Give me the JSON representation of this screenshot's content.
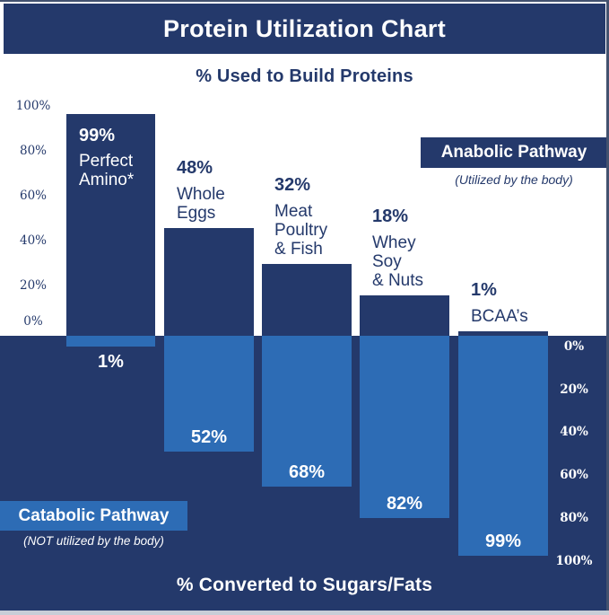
{
  "title": "Protein Utilization Chart",
  "top_axis_title": "% Used to Build Proteins",
  "bottom_axis_title": "% Converted to Sugars/Fats",
  "anabolic": {
    "label": "Anabolic Pathway",
    "sub": "(Utilized by the body)"
  },
  "catabolic": {
    "label": "Catabolic Pathway",
    "sub": "(NOT utilized by the body)"
  },
  "left_axis": [
    "100%",
    "80%",
    "60%",
    "40%",
    "20%",
    "0%"
  ],
  "right_axis": [
    "0%",
    "20%",
    "40%",
    "60%",
    "80%",
    "100%"
  ],
  "bars": [
    {
      "up_pct": "99%",
      "down_pct": "1%",
      "name_lines": [
        "Perfect",
        "Amino*"
      ]
    },
    {
      "up_pct": "48%",
      "down_pct": "52%",
      "name_lines": [
        "Whole",
        "Eggs"
      ]
    },
    {
      "up_pct": "32%",
      "down_pct": "68%",
      "name_lines": [
        "Meat",
        "Poultry",
        "& Fish"
      ]
    },
    {
      "up_pct": "18%",
      "down_pct": "82%",
      "name_lines": [
        "Whey",
        "Soy",
        "& Nuts"
      ]
    },
    {
      "up_pct": "1%",
      "down_pct": "99%",
      "name_lines": [
        "BCAA’s"
      ]
    }
  ],
  "colors": {
    "navy": "#24396B",
    "blue": "#2D6CB5",
    "white": "#FFFFFF",
    "edge_dark": "#43526F",
    "edge_light": "#C9CED7"
  },
  "chart_data": {
    "type": "bar",
    "subtype": "diverging-vertical",
    "title": "Protein Utilization Chart",
    "categories": [
      "Perfect Amino*",
      "Whole Eggs",
      "Meat Poultry & Fish",
      "Whey Soy & Nuts",
      "BCAA's"
    ],
    "series": [
      {
        "name": "% Used to Build Proteins",
        "pathway": "Anabolic Pathway (Utilized by the body)",
        "direction": "up",
        "color": "#24396B",
        "values": [
          99,
          48,
          32,
          18,
          1
        ]
      },
      {
        "name": "% Converted to Sugars/Fats",
        "pathway": "Catabolic Pathway (NOT utilized by the body)",
        "direction": "down",
        "color": "#2D6CB5",
        "values": [
          1,
          52,
          68,
          82,
          99
        ]
      }
    ],
    "top_axis": {
      "label": "% Used to Build Proteins",
      "ticks": [
        "100%",
        "80%",
        "60%",
        "40%",
        "20%",
        "0%"
      ],
      "range": [
        0,
        100
      ],
      "side": "left"
    },
    "bottom_axis": {
      "label": "% Converted to Sugars/Fats",
      "ticks": [
        "0%",
        "20%",
        "40%",
        "60%",
        "80%",
        "100%"
      ],
      "range": [
        0,
        100
      ],
      "side": "right"
    },
    "grid": false,
    "legend_position": "inline-badges"
  }
}
